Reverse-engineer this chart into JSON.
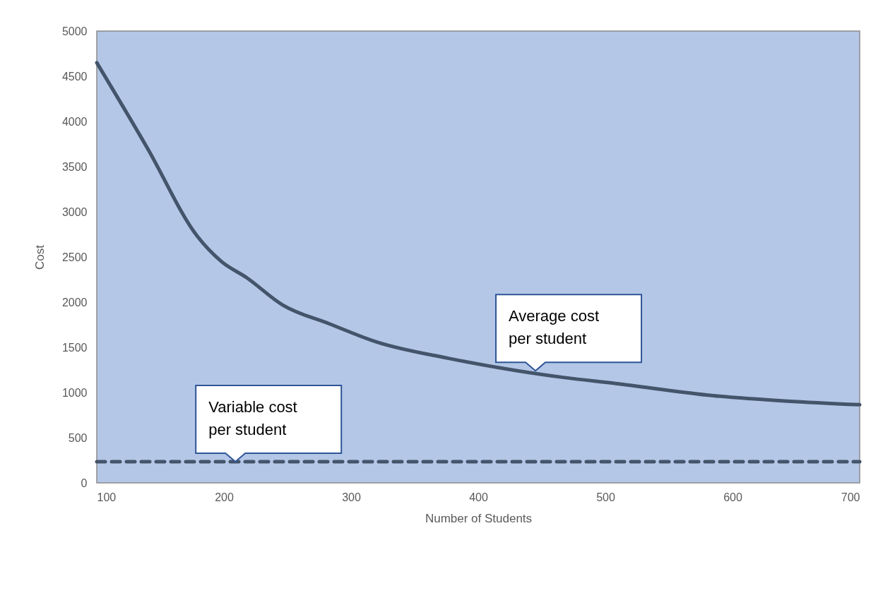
{
  "chart_data": {
    "type": "line",
    "xlabel": "Number of Students",
    "ylabel": "Cost",
    "xlim": [
      100,
      700
    ],
    "xticks": [
      100,
      200,
      300,
      400,
      500,
      600,
      700
    ],
    "ylim": [
      0,
      5000
    ],
    "yticks": [
      0,
      500,
      1000,
      1500,
      2000,
      2500,
      3000,
      3500,
      4000,
      4500,
      5000
    ],
    "grid": false,
    "series": [
      {
        "color": "#44546a",
        "line_style": "solid",
        "x": [
          100,
          140,
          179,
          198,
          218,
          246,
          283,
          320,
          376,
          431,
          468,
          508,
          585,
          643,
          700
        ],
        "values": [
          4650,
          3700,
          2730,
          2450,
          2270,
          1970,
          1760,
          1560,
          1380,
          1240,
          1165,
          1100,
          965,
          905,
          865
        ]
      },
      {
        "color": "#44546a",
        "line_style": "dashed",
        "x": [
          100,
          700
        ],
        "values": [
          235,
          235
        ]
      }
    ],
    "annotations": [
      {
        "text": "Average cost\nper student",
        "x": 445,
        "y": 1240
      },
      {
        "text": "Variable cost\nper student",
        "x": 209,
        "y": 235
      }
    ]
  }
}
